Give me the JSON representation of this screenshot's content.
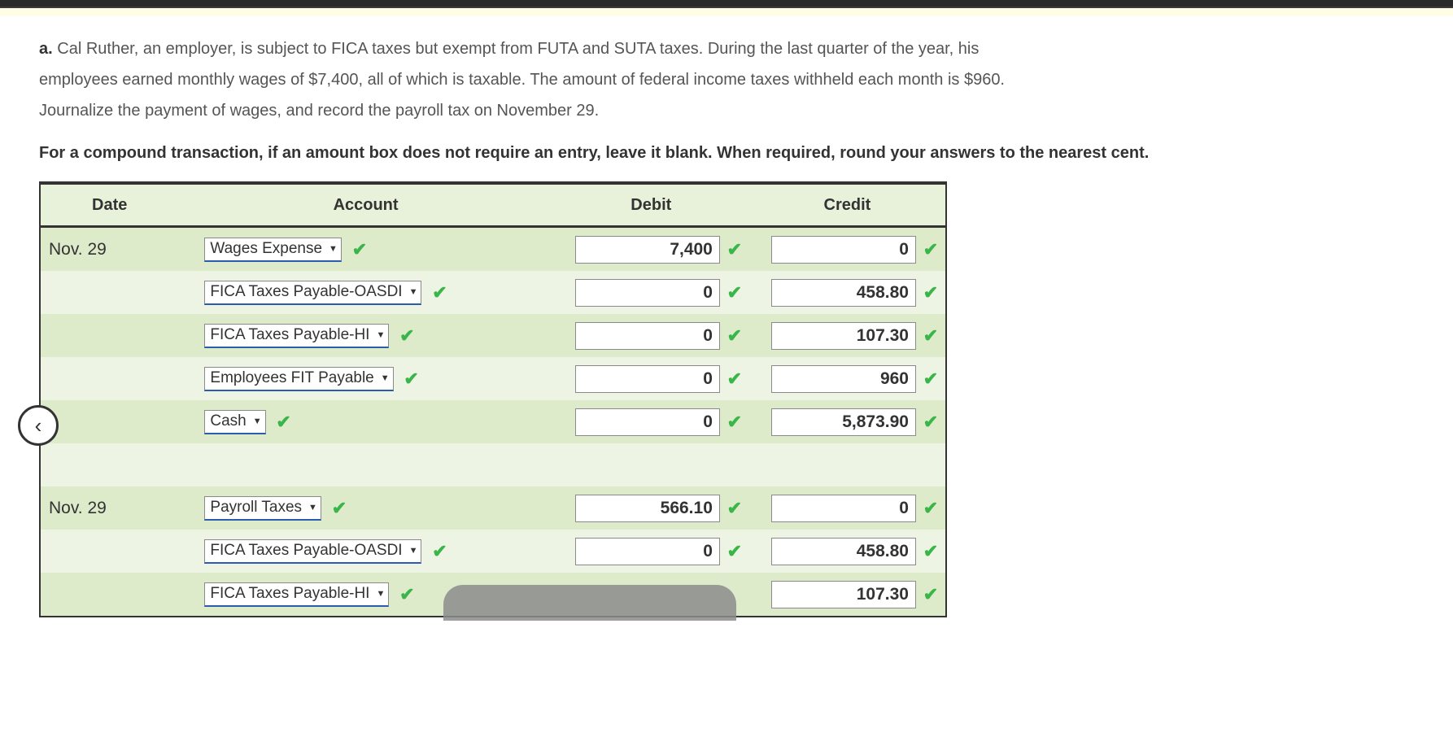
{
  "problem": {
    "label": "a.",
    "text_line1": "Cal Ruther, an employer, is subject to FICA taxes but exempt from FUTA and SUTA taxes. During the last quarter of the year, his",
    "text_line2": "employees earned monthly wages of $7,400, all of which is taxable. The amount of federal income taxes withheld each month is $960.",
    "text_line3": "Journalize the payment of wages, and record the payroll tax on November 29.",
    "instruction": "For a compound transaction, if an amount box does not require an entry, leave it blank. When required, round your answers to the nearest cent."
  },
  "table": {
    "headers": {
      "date": "Date",
      "account": "Account",
      "debit": "Debit",
      "credit": "Credit"
    },
    "rows": [
      {
        "date": "Nov. 29",
        "account": "Wages Expense",
        "debit": "7,400",
        "credit": "0",
        "stripe": "odd"
      },
      {
        "date": "",
        "account": "FICA Taxes Payable-OASDI",
        "debit": "0",
        "credit": "458.80",
        "stripe": "even"
      },
      {
        "date": "",
        "account": "FICA Taxes Payable-HI",
        "debit": "0",
        "credit": "107.30",
        "stripe": "odd"
      },
      {
        "date": "",
        "account": "Employees FIT Payable",
        "debit": "0",
        "credit": "960",
        "stripe": "even"
      },
      {
        "date": "",
        "account": "Cash",
        "debit": "0",
        "credit": "5,873.90",
        "stripe": "odd"
      },
      {
        "spacer": true
      },
      {
        "date": "Nov. 29",
        "account": "Payroll Taxes",
        "debit": "566.10",
        "credit": "0",
        "stripe": "odd"
      },
      {
        "date": "",
        "account": "FICA Taxes Payable-OASDI",
        "debit": "0",
        "credit": "458.80",
        "stripe": "even"
      },
      {
        "date": "",
        "account": "FICA Taxes Payable-HI",
        "debit": "",
        "credit": "107.30",
        "stripe": "odd",
        "hideDebit": true
      }
    ]
  },
  "colors": {
    "header_bg": "#e8f1da",
    "row_odd": "#ddebca",
    "row_even": "#eef4e3",
    "check": "#39b54a",
    "underline": "#2a5db0"
  }
}
